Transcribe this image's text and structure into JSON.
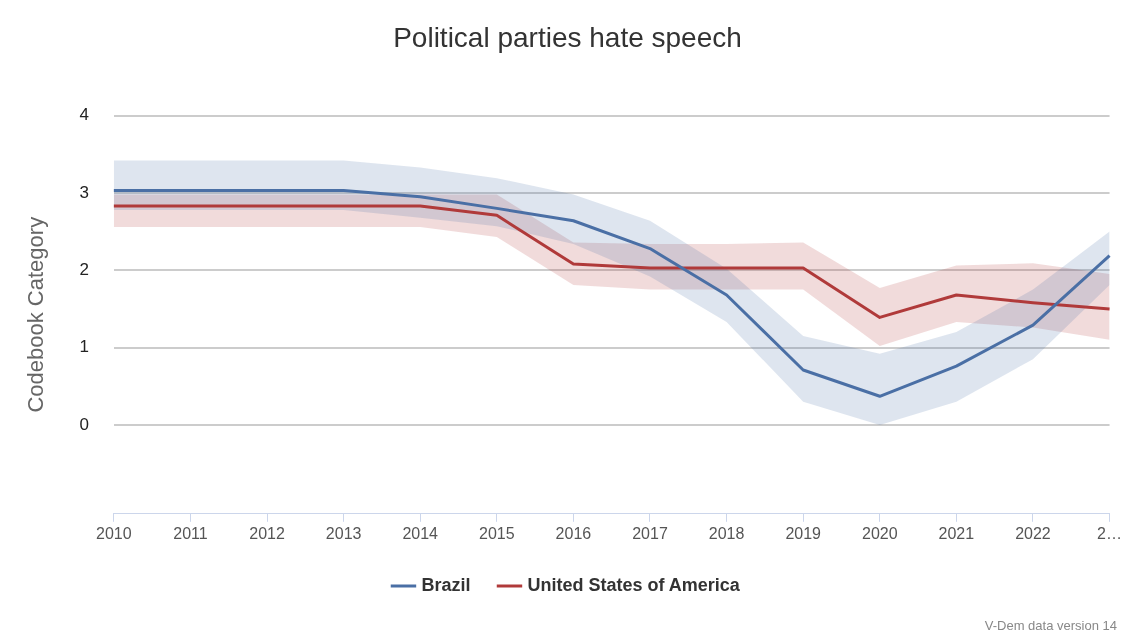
{
  "chart_data": {
    "type": "line",
    "title": "Political parties hate speech",
    "ylabel": "Codebook Category",
    "categories": [
      "2010",
      "2011",
      "2012",
      "2013",
      "2014",
      "2015",
      "2016",
      "2017",
      "2018",
      "2019",
      "2020",
      "2021",
      "2022",
      "2…"
    ],
    "series": [
      {
        "name": "Brazil",
        "color": "#4a6fa5",
        "values": [
          3.03,
          3.03,
          3.03,
          3.03,
          2.95,
          2.8,
          2.64,
          2.28,
          1.68,
          0.71,
          0.37,
          0.76,
          1.29,
          2.19
        ],
        "lower": [
          2.78,
          2.78,
          2.78,
          2.78,
          2.68,
          2.57,
          2.34,
          1.92,
          1.33,
          0.3,
          0.0,
          0.3,
          0.85,
          1.81
        ],
        "upper": [
          3.42,
          3.42,
          3.42,
          3.42,
          3.33,
          3.19,
          2.98,
          2.64,
          2.02,
          1.15,
          0.92,
          1.2,
          1.75,
          2.5
        ]
      },
      {
        "name": "United States of America",
        "color": "#b03a3a",
        "values": [
          2.83,
          2.83,
          2.83,
          2.83,
          2.83,
          2.71,
          2.08,
          2.03,
          2.03,
          2.03,
          1.39,
          1.68,
          1.58,
          1.5
        ],
        "lower": [
          2.56,
          2.56,
          2.56,
          2.56,
          2.56,
          2.43,
          1.81,
          1.75,
          1.75,
          1.75,
          1.02,
          1.33,
          1.26,
          1.1
        ],
        "upper": [
          2.98,
          2.98,
          2.98,
          2.98,
          2.98,
          2.98,
          2.36,
          2.34,
          2.34,
          2.36,
          1.77,
          2.06,
          2.09,
          1.95
        ]
      }
    ],
    "ylim": [
      -1.15,
      4
    ],
    "yticks": [
      0,
      1,
      2,
      3,
      4
    ],
    "grid": "y",
    "legend": "bottom",
    "marker": "none",
    "line_style": "solid",
    "annotations": [
      "V-Dem data version 14"
    ]
  }
}
